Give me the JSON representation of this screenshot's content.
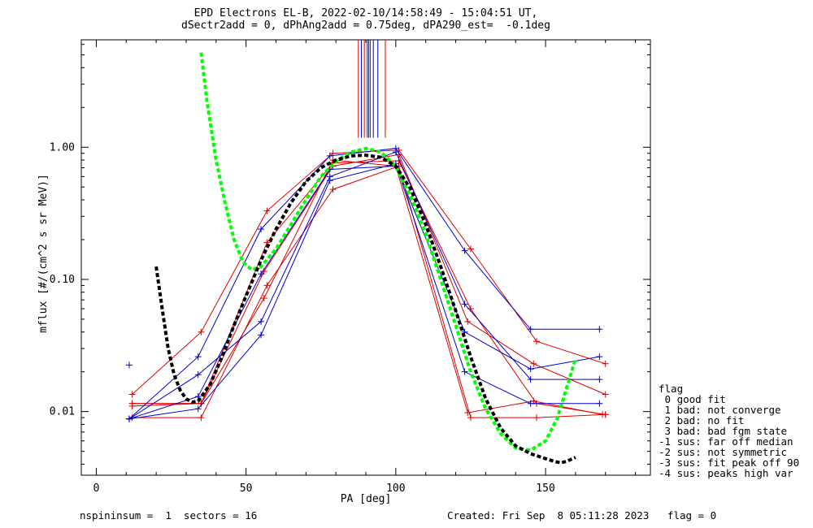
{
  "title_line1": "EPD Electrons EL-B, 2022-02-10/14:58:49 - 15:04:51 UT,",
  "title_line2": "dSectr2add = 0, dPhAng2add = 0.75deg, dPA290_est=  -0.1deg",
  "footer_left": "nspininsum =  1  sectors = 16",
  "footer_right": "Created: Fri Sep  8 05:11:28 2023   flag = 0",
  "legend": {
    "title": "flag",
    "items": [
      " 0 good fit",
      " 1 bad: not converge",
      " 2 bad: no fit",
      " 3 bad: bad fgm state",
      "-1 sus: far off median",
      "-2 sus: not symmetric",
      "-3 sus: fit peak off 90",
      "-4 sus: peaks high var"
    ]
  },
  "colors": {
    "red": "#e00000",
    "blue": "#0000d0",
    "green": "#00ff00",
    "black": "#000000"
  },
  "chart_data": {
    "type": "line",
    "xlabel": "PA [deg]",
    "ylabel": "mflux [#/(cm^2 s sr MeV)]",
    "xlim": [
      -5,
      185
    ],
    "ylim": [
      0.0033,
      6.5
    ],
    "yscale": "log",
    "xticks": [
      0,
      50,
      100,
      150
    ],
    "yticks": [
      0.01,
      0.1,
      1.0
    ],
    "ytick_labels": [
      "0.01",
      "0.10",
      "1.00"
    ],
    "series": [
      {
        "color": "red",
        "x": [
          12,
          35,
          57,
          79,
          101,
          125,
          147,
          170
        ],
        "y": [
          0.0135,
          0.04,
          0.33,
          0.9,
          0.95,
          0.17,
          0.034,
          0.023
        ]
      },
      {
        "color": "red",
        "x": [
          12,
          35,
          57,
          79,
          101,
          125,
          147,
          170
        ],
        "y": [
          0.0115,
          0.0115,
          0.19,
          0.76,
          0.79,
          0.06,
          0.0115,
          0.0095
        ]
      },
      {
        "color": "red",
        "x": [
          12,
          35,
          57,
          79,
          101,
          125,
          147,
          170
        ],
        "y": [
          0.009,
          0.009,
          0.09,
          0.48,
          0.72,
          0.009,
          0.009,
          0.0095
        ]
      },
      {
        "color": "red",
        "x": [
          12,
          35,
          56,
          79,
          101,
          124,
          146,
          170
        ],
        "y": [
          0.011,
          0.0115,
          0.115,
          0.72,
          0.88,
          0.048,
          0.023,
          0.0135
        ]
      },
      {
        "color": "red",
        "x": [
          12,
          35,
          56,
          79,
          100,
          124,
          146,
          169
        ],
        "y": [
          0.0115,
          0.0115,
          0.072,
          0.8,
          0.72,
          0.0098,
          0.012,
          0.0095
        ]
      },
      {
        "color": "blue",
        "x": [
          11,
          34,
          55,
          78,
          100,
          123,
          145,
          168
        ],
        "y": [
          0.0088,
          0.026,
          0.24,
          0.86,
          0.98,
          0.165,
          0.042,
          0.042
        ]
      },
      {
        "color": "blue",
        "x": [
          11,
          34,
          55,
          78,
          100,
          123,
          145,
          168
        ],
        "y": [
          0.0088,
          0.0105,
          0.038,
          0.56,
          0.75,
          0.02,
          0.0115,
          0.0115
        ]
      },
      {
        "color": "blue",
        "x": [
          11,
          34,
          55,
          78,
          100,
          123,
          145,
          168
        ],
        "y": [
          0.0088,
          0.013,
          0.11,
          0.68,
          0.72,
          0.04,
          0.021,
          0.026
        ]
      },
      {
        "color": "blue",
        "x": [
          11,
          34,
          55,
          78,
          100,
          123,
          145,
          168
        ],
        "y": [
          0.0088,
          0.019,
          0.048,
          0.6,
          0.92,
          0.065,
          0.0175,
          0.0175
        ]
      }
    ],
    "extra_markers": [
      {
        "color": "blue",
        "x": 11,
        "y": 0.0225
      }
    ],
    "fits": [
      {
        "name": "green-fit",
        "color": "green",
        "x": [
          35,
          37,
          40,
          43,
          46,
          49,
          52,
          55,
          60,
          65,
          70,
          75,
          80,
          85,
          90,
          95,
          100,
          105,
          110,
          115,
          120,
          125,
          130,
          135,
          140,
          145,
          150,
          154,
          157,
          160
        ],
        "y": [
          5.2,
          2.2,
          0.8,
          0.38,
          0.2,
          0.135,
          0.118,
          0.125,
          0.17,
          0.26,
          0.4,
          0.6,
          0.78,
          0.92,
          0.98,
          0.92,
          0.72,
          0.42,
          0.22,
          0.1,
          0.045,
          0.02,
          0.0105,
          0.0068,
          0.0053,
          0.0051,
          0.006,
          0.009,
          0.015,
          0.025
        ]
      },
      {
        "name": "black-fit",
        "color": "black",
        "x": [
          20,
          22,
          24,
          26,
          28,
          30,
          32,
          34,
          38,
          42,
          46,
          50,
          55,
          60,
          65,
          70,
          75,
          80,
          85,
          90,
          95,
          100,
          105,
          110,
          115,
          120,
          125,
          130,
          135,
          140,
          145,
          150,
          153,
          155,
          157,
          160
        ],
        "y": [
          0.125,
          0.06,
          0.03,
          0.019,
          0.0145,
          0.0125,
          0.0118,
          0.012,
          0.016,
          0.026,
          0.045,
          0.075,
          0.14,
          0.24,
          0.38,
          0.55,
          0.7,
          0.8,
          0.86,
          0.87,
          0.84,
          0.72,
          0.48,
          0.26,
          0.125,
          0.058,
          0.026,
          0.0125,
          0.0075,
          0.0055,
          0.0048,
          0.0044,
          0.0042,
          0.0041,
          0.0042,
          0.0045
        ]
      }
    ],
    "vertical_lines": [
      {
        "color": "red",
        "x": 87.5
      },
      {
        "color": "blue",
        "x": 88.5
      },
      {
        "color": "red",
        "x": 89.5
      },
      {
        "color": "blue",
        "x": 90.5
      },
      {
        "color": "blue",
        "x": 91.0
      },
      {
        "color": "red",
        "x": 91.5
      },
      {
        "color": "blue",
        "x": 92.5
      },
      {
        "color": "blue",
        "x": 94.0
      },
      {
        "color": "red",
        "x": 96.5
      }
    ],
    "vertical_line_bottom": 1.18
  }
}
